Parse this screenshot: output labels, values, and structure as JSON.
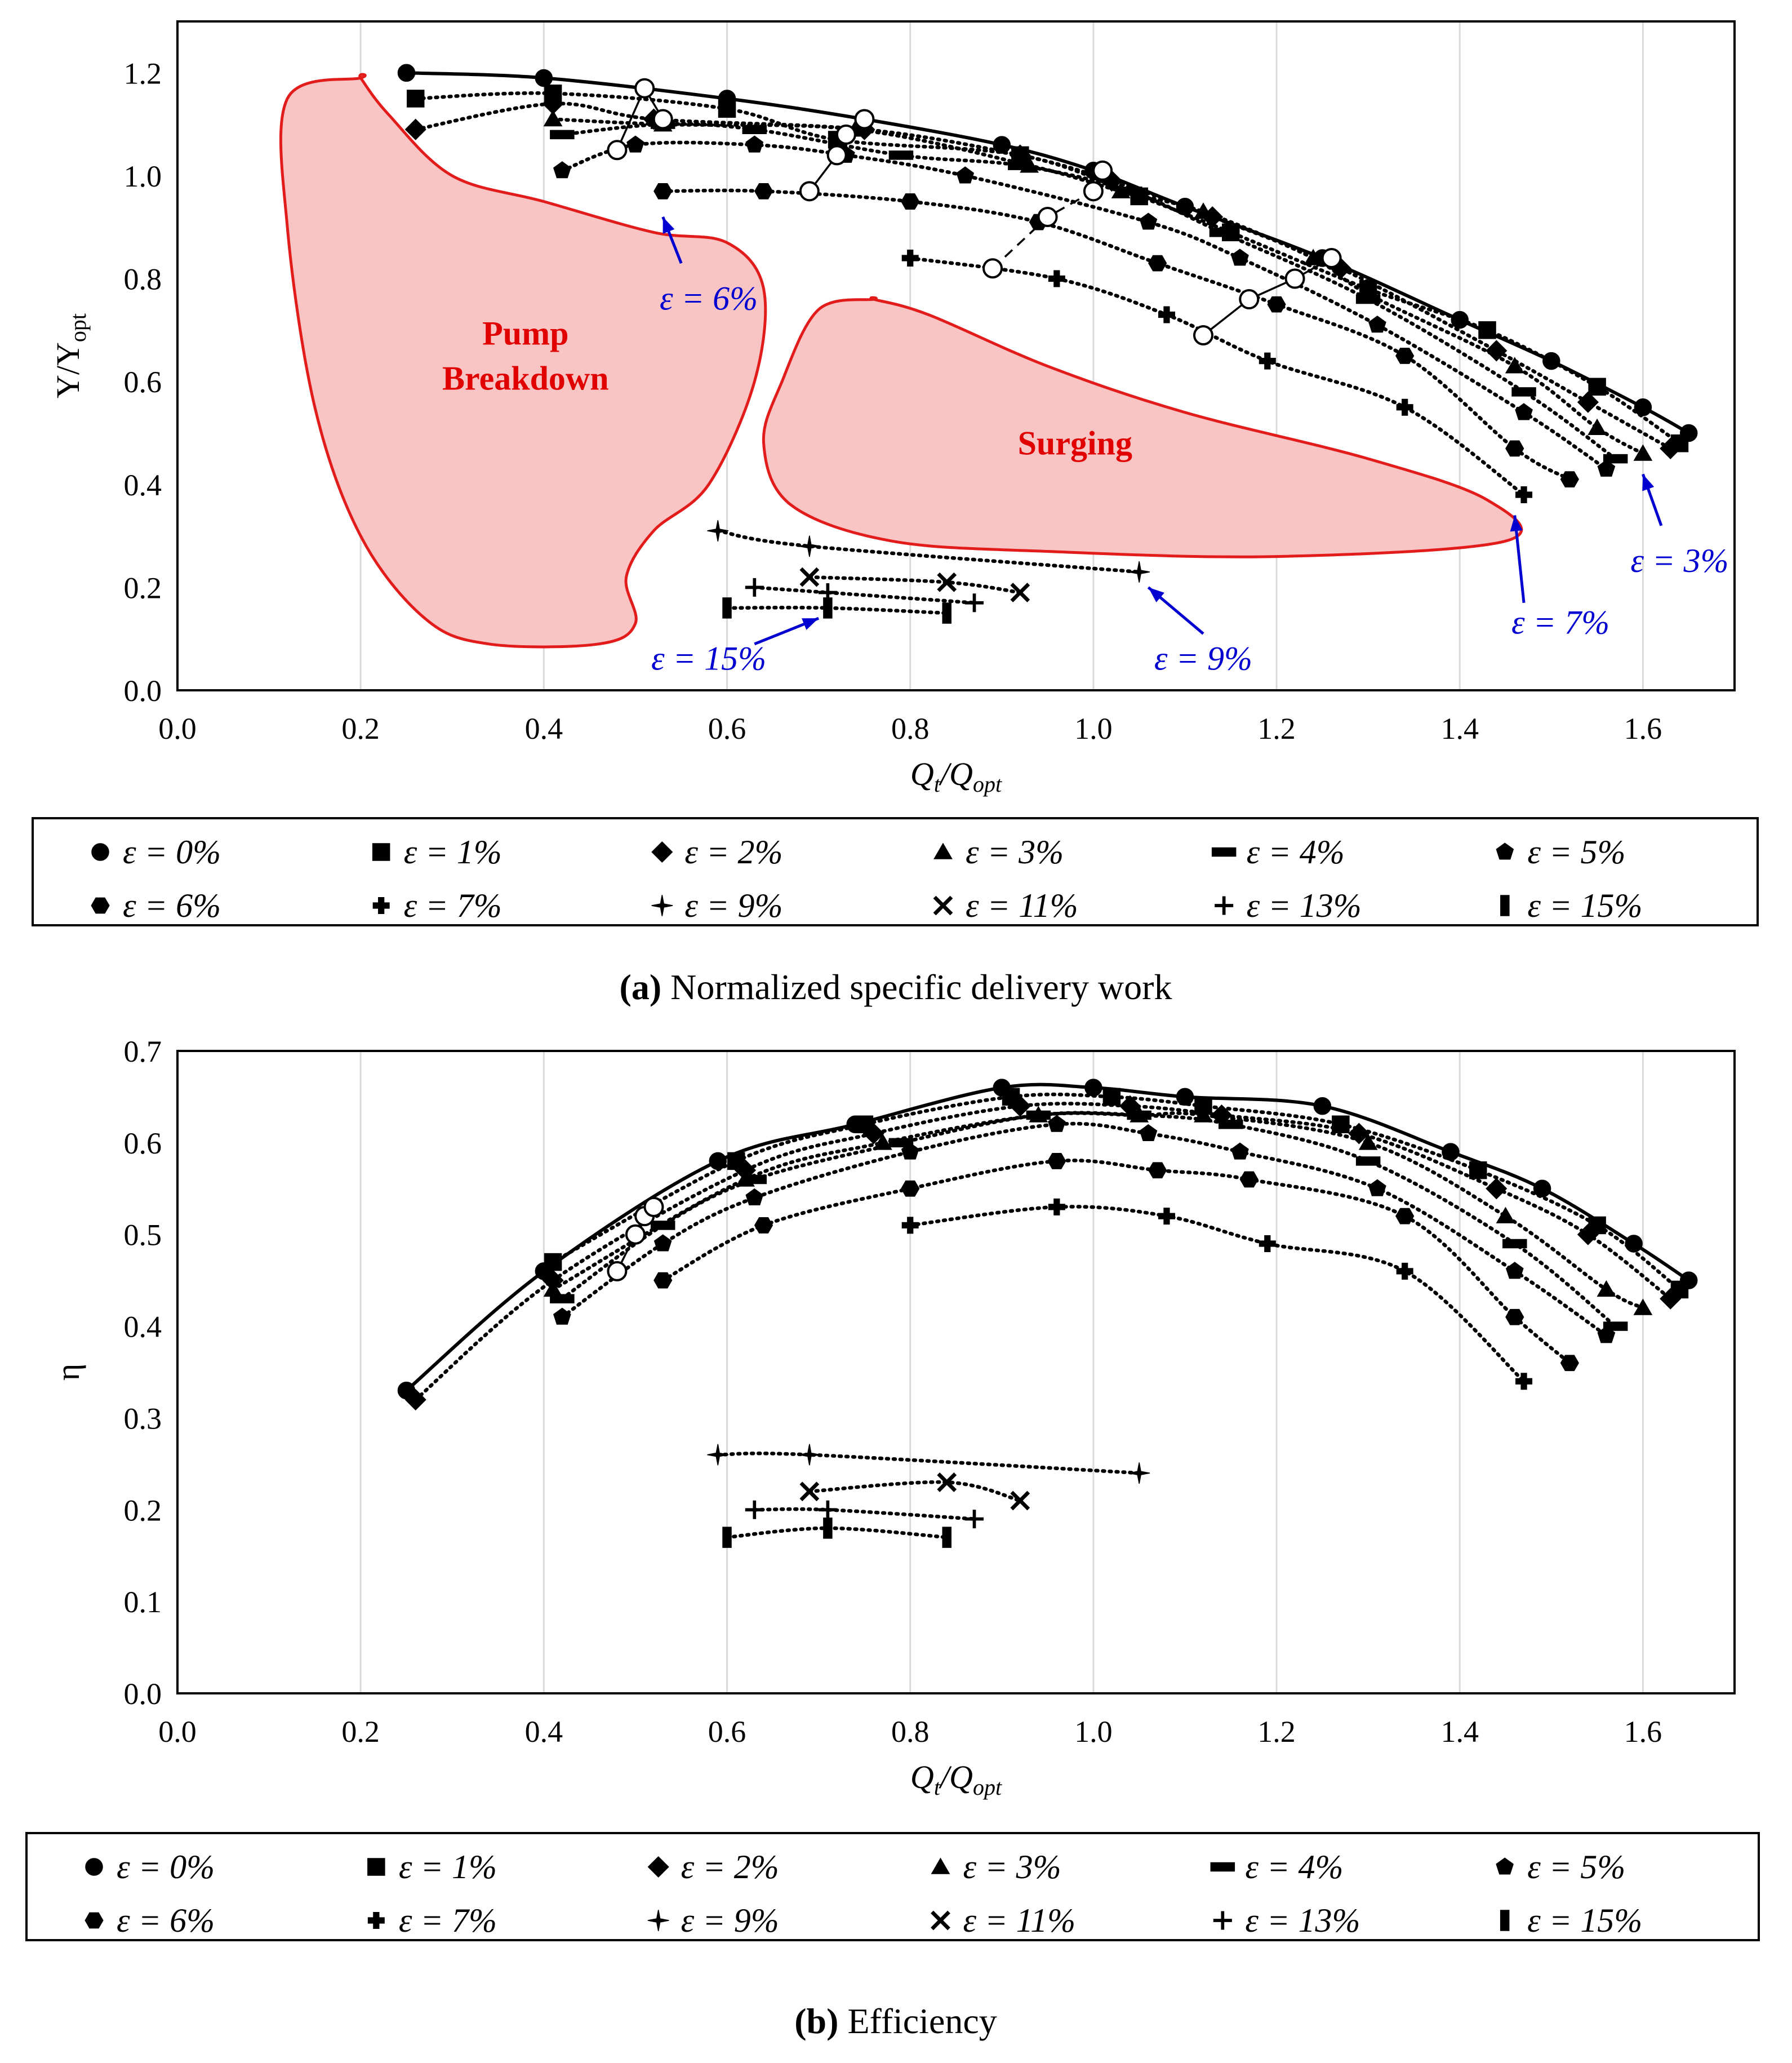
{
  "colors": {
    "region_fill": "#f9c4c4",
    "region_stroke": "#e21b1b",
    "annotation": "#0000d0",
    "grid": "#d9d9d9"
  },
  "chart_data": [
    {
      "id": "a",
      "type": "scatter",
      "caption_label": "(a)",
      "caption_text": " Normalized specific delivery work",
      "xlabel": "Q_t/Q_opt",
      "ylabel": "Υ/Υ_opt",
      "xlim": [
        0.0,
        1.7
      ],
      "ylim": [
        0.0,
        1.3
      ],
      "x_ticks": [
        "0.0",
        "0.2",
        "0.4",
        "0.6",
        "0.8",
        "1.0",
        "1.2",
        "1.4",
        "1.6"
      ],
      "y_ticks": [
        "0.0",
        "0.2",
        "0.4",
        "0.6",
        "0.8",
        "1.0",
        "1.2"
      ],
      "grid": "vertical",
      "regions": [
        {
          "label_lines": [
            "Pump",
            "Breakdown"
          ],
          "label_anchor": [
            0.38,
            0.65
          ],
          "outline": [
            [
              0.2,
              1.19
            ],
            [
              0.12,
              1.15
            ],
            [
              0.12,
              0.9
            ],
            [
              0.15,
              0.55
            ],
            [
              0.2,
              0.3
            ],
            [
              0.27,
              0.14
            ],
            [
              0.34,
              0.09
            ],
            [
              0.46,
              0.09
            ],
            [
              0.5,
              0.13
            ],
            [
              0.49,
              0.22
            ],
            [
              0.52,
              0.31
            ],
            [
              0.58,
              0.4
            ],
            [
              0.63,
              0.6
            ],
            [
              0.64,
              0.78
            ],
            [
              0.6,
              0.87
            ],
            [
              0.52,
              0.89
            ],
            [
              0.4,
              0.95
            ],
            [
              0.3,
              1.0
            ],
            [
              0.23,
              1.12
            ],
            [
              0.2,
              1.19
            ]
          ]
        },
        {
          "label_lines": [
            "Surging"
          ],
          "label_anchor": [
            0.98,
            0.48
          ],
          "outline": [
            [
              0.76,
              0.76
            ],
            [
              0.7,
              0.74
            ],
            [
              0.66,
              0.6
            ],
            [
              0.64,
              0.48
            ],
            [
              0.67,
              0.36
            ],
            [
              0.78,
              0.29
            ],
            [
              0.95,
              0.27
            ],
            [
              1.2,
              0.26
            ],
            [
              1.45,
              0.29
            ],
            [
              1.43,
              0.37
            ],
            [
              1.3,
              0.45
            ],
            [
              1.1,
              0.54
            ],
            [
              0.95,
              0.63
            ],
            [
              0.82,
              0.73
            ],
            [
              0.76,
              0.76
            ]
          ]
        }
      ],
      "annotations": [
        {
          "text": "ε = 6%",
          "text_anchor": [
            0.58,
            0.74
          ],
          "arrow_from": [
            0.55,
            0.83
          ],
          "arrow_to": [
            0.53,
            0.92
          ]
        },
        {
          "text": "ε = 15%",
          "text_anchor": [
            0.58,
            0.04
          ],
          "arrow_from": [
            0.63,
            0.09
          ],
          "arrow_to": [
            0.7,
            0.14
          ]
        },
        {
          "text": "ε = 9%",
          "text_anchor": [
            1.12,
            0.04
          ],
          "arrow_from": [
            1.12,
            0.11
          ],
          "arrow_to": [
            1.06,
            0.2
          ]
        },
        {
          "text": "ε = 7%",
          "text_anchor": [
            1.51,
            0.11
          ],
          "arrow_from": [
            1.47,
            0.17
          ],
          "arrow_to": [
            1.46,
            0.34
          ]
        },
        {
          "text": "ε = 3%",
          "text_anchor": [
            1.64,
            0.23
          ],
          "arrow_from": [
            1.62,
            0.32
          ],
          "arrow_to": [
            1.6,
            0.42
          ]
        }
      ],
      "series": [
        {
          "name": "ε = 0%",
          "marker": "circle",
          "solid": true,
          "x": [
            0.25,
            0.4,
            0.6,
            0.75,
            0.9,
            1.0,
            1.1,
            1.25,
            1.4,
            1.5,
            1.6,
            1.65
          ],
          "y": [
            1.2,
            1.19,
            1.15,
            1.11,
            1.06,
            1.01,
            0.94,
            0.84,
            0.72,
            0.64,
            0.55,
            0.5
          ]
        },
        {
          "name": "ε = 1%",
          "marker": "square",
          "x": [
            0.26,
            0.41,
            0.6,
            0.72,
            0.92,
            1.05,
            1.15,
            1.3,
            1.43,
            1.55,
            1.64
          ],
          "y": [
            1.15,
            1.16,
            1.13,
            1.07,
            1.04,
            0.96,
            0.89,
            0.78,
            0.7,
            0.59,
            0.48
          ]
        },
        {
          "name": "ε = 2%",
          "marker": "diamond",
          "x": [
            0.26,
            0.41,
            0.52,
            0.75,
            0.92,
            1.02,
            1.13,
            1.27,
            1.44,
            1.54,
            1.63
          ],
          "y": [
            1.09,
            1.14,
            1.11,
            1.09,
            1.04,
            0.99,
            0.92,
            0.82,
            0.66,
            0.56,
            0.47
          ]
        },
        {
          "name": "ε = 3%",
          "marker": "triangle",
          "x": [
            0.41,
            0.53,
            0.74,
            0.93,
            1.03,
            1.12,
            1.24,
            1.3,
            1.46,
            1.55,
            1.6
          ],
          "y": [
            1.11,
            1.1,
            1.09,
            1.02,
            0.97,
            0.93,
            0.84,
            0.77,
            0.63,
            0.51,
            0.46
          ]
        },
        {
          "name": "ε = 4%",
          "marker": "dash",
          "x": [
            0.42,
            0.53,
            0.63,
            0.79,
            0.92,
            1.04,
            1.14,
            1.3,
            1.47,
            1.57
          ],
          "y": [
            1.08,
            1.1,
            1.09,
            1.04,
            1.02,
            0.97,
            0.89,
            0.76,
            0.58,
            0.45
          ]
        },
        {
          "name": "ε = 5%",
          "marker": "pentagon",
          "x": [
            0.42,
            0.5,
            0.63,
            0.73,
            0.86,
            1.06,
            1.16,
            1.31,
            1.47,
            1.56
          ],
          "y": [
            1.01,
            1.06,
            1.06,
            1.04,
            1.0,
            0.91,
            0.84,
            0.71,
            0.54,
            0.43
          ]
        },
        {
          "name": "ε = 6%",
          "marker": "hexagon",
          "x": [
            0.53,
            0.64,
            0.8,
            0.94,
            1.07,
            1.2,
            1.34,
            1.46,
            1.52
          ],
          "y": [
            0.97,
            0.97,
            0.95,
            0.91,
            0.83,
            0.75,
            0.65,
            0.47,
            0.41
          ]
        },
        {
          "name": "ε = 7%",
          "marker": "thickplus",
          "x": [
            0.8,
            0.96,
            1.08,
            1.19,
            1.34,
            1.47
          ],
          "y": [
            0.84,
            0.8,
            0.73,
            0.64,
            0.55,
            0.38
          ]
        },
        {
          "name": "ε = 9%",
          "marker": "star4",
          "x": [
            0.59,
            0.69,
            1.05
          ],
          "y": [
            0.31,
            0.28,
            0.23
          ]
        },
        {
          "name": "ε = 11%",
          "marker": "cross",
          "x": [
            0.69,
            0.84,
            0.92
          ],
          "y": [
            0.22,
            0.21,
            0.19
          ]
        },
        {
          "name": "ε = 13%",
          "marker": "plus",
          "x": [
            0.63,
            0.71,
            0.87
          ],
          "y": [
            0.2,
            0.19,
            0.17
          ]
        },
        {
          "name": "ε = 15%",
          "marker": "vbar",
          "x": [
            0.6,
            0.71,
            0.84
          ],
          "y": [
            0.16,
            0.16,
            0.15
          ]
        }
      ],
      "operating_lines": [
        {
          "style": "solid",
          "x": [
            0.48,
            0.51,
            0.53
          ],
          "y": [
            1.05,
            1.17,
            1.11
          ]
        },
        {
          "style": "solid",
          "x": [
            0.69,
            0.72,
            0.73,
            0.75
          ],
          "y": [
            0.97,
            1.04,
            1.08,
            1.11
          ]
        },
        {
          "style": "dashed",
          "x": [
            0.89,
            0.95,
            1.0,
            1.01
          ],
          "y": [
            0.82,
            0.92,
            0.97,
            1.01
          ]
        },
        {
          "style": "solid",
          "x": [
            1.12,
            1.17,
            1.22,
            1.26
          ],
          "y": [
            0.69,
            0.76,
            0.8,
            0.84
          ]
        }
      ],
      "operating_points": {
        "x": [
          0.48,
          0.51,
          0.53,
          0.69,
          0.72,
          0.73,
          0.75,
          0.89,
          0.95,
          1.0,
          1.01,
          1.12,
          1.17,
          1.22,
          1.26
        ],
        "y": [
          1.05,
          1.17,
          1.11,
          0.97,
          1.04,
          1.08,
          1.11,
          0.82,
          0.92,
          0.97,
          1.01,
          0.69,
          0.76,
          0.8,
          0.84
        ]
      }
    },
    {
      "id": "b",
      "type": "scatter",
      "caption_label": "(b)",
      "caption_text": " Efficiency",
      "xlabel": "Q_t/Q_opt",
      "ylabel": "η",
      "xlim": [
        0.0,
        1.7
      ],
      "ylim": [
        0.0,
        0.7
      ],
      "x_ticks": [
        "0.0",
        "0.2",
        "0.4",
        "0.6",
        "0.8",
        "1.0",
        "1.2",
        "1.4",
        "1.6"
      ],
      "y_ticks": [
        "0.0",
        "0.1",
        "0.2",
        "0.3",
        "0.4",
        "0.5",
        "0.6",
        "0.7"
      ],
      "grid": "vertical",
      "series": [
        {
          "name": "ε = 0%",
          "marker": "circle",
          "solid": true,
          "x": [
            0.25,
            0.4,
            0.59,
            0.74,
            0.9,
            1.0,
            1.1,
            1.25,
            1.39,
            1.49,
            1.59,
            1.65
          ],
          "y": [
            0.33,
            0.46,
            0.58,
            0.62,
            0.66,
            0.66,
            0.65,
            0.64,
            0.59,
            0.55,
            0.49,
            0.45
          ]
        },
        {
          "name": "ε = 1%",
          "marker": "square",
          "x": [
            0.41,
            0.61,
            0.75,
            0.91,
            1.02,
            1.12,
            1.27,
            1.42,
            1.55,
            1.64
          ],
          "y": [
            0.47,
            0.58,
            0.62,
            0.65,
            0.65,
            0.64,
            0.62,
            0.57,
            0.51,
            0.44
          ]
        },
        {
          "name": "ε = 2%",
          "marker": "diamond",
          "x": [
            0.26,
            0.41,
            0.62,
            0.76,
            0.92,
            1.04,
            1.14,
            1.29,
            1.44,
            1.54,
            1.63
          ],
          "y": [
            0.32,
            0.45,
            0.57,
            0.61,
            0.64,
            0.64,
            0.63,
            0.61,
            0.55,
            0.5,
            0.43
          ]
        },
        {
          "name": "ε = 3%",
          "marker": "triangle",
          "x": [
            0.41,
            0.62,
            0.77,
            0.94,
            1.05,
            1.12,
            1.3,
            1.45,
            1.56,
            1.6
          ],
          "y": [
            0.44,
            0.56,
            0.6,
            0.63,
            0.63,
            0.63,
            0.6,
            0.52,
            0.44,
            0.42
          ]
        },
        {
          "name": "ε = 4%",
          "marker": "dash",
          "x": [
            0.42,
            0.53,
            0.63,
            0.79,
            0.94,
            1.05,
            1.15,
            1.3,
            1.46,
            1.57
          ],
          "y": [
            0.43,
            0.51,
            0.56,
            0.6,
            0.63,
            0.63,
            0.62,
            0.58,
            0.49,
            0.4
          ]
        },
        {
          "name": "ε = 5%",
          "marker": "pentagon",
          "x": [
            0.42,
            0.53,
            0.63,
            0.8,
            0.96,
            1.06,
            1.16,
            1.31,
            1.46,
            1.56
          ],
          "y": [
            0.41,
            0.49,
            0.54,
            0.59,
            0.62,
            0.61,
            0.59,
            0.55,
            0.46,
            0.39
          ]
        },
        {
          "name": "ε = 6%",
          "marker": "hexagon",
          "x": [
            0.53,
            0.64,
            0.8,
            0.96,
            1.07,
            1.17,
            1.34,
            1.46,
            1.52
          ],
          "y": [
            0.45,
            0.51,
            0.55,
            0.58,
            0.57,
            0.56,
            0.52,
            0.41,
            0.36
          ]
        },
        {
          "name": "ε = 7%",
          "marker": "thickplus",
          "x": [
            0.8,
            0.96,
            1.08,
            1.19,
            1.34,
            1.47
          ],
          "y": [
            0.51,
            0.53,
            0.52,
            0.49,
            0.46,
            0.34
          ]
        },
        {
          "name": "ε = 9%",
          "marker": "star4",
          "x": [
            0.59,
            0.69,
            1.05
          ],
          "y": [
            0.26,
            0.26,
            0.24
          ]
        },
        {
          "name": "ε = 11%",
          "marker": "cross",
          "x": [
            0.69,
            0.84,
            0.92
          ],
          "y": [
            0.22,
            0.23,
            0.21
          ]
        },
        {
          "name": "ε = 13%",
          "marker": "plus",
          "x": [
            0.63,
            0.71,
            0.87
          ],
          "y": [
            0.2,
            0.2,
            0.19
          ]
        },
        {
          "name": "ε = 15%",
          "marker": "vbar",
          "x": [
            0.6,
            0.71,
            0.84
          ],
          "y": [
            0.17,
            0.18,
            0.17
          ]
        }
      ],
      "operating_lines": [
        {
          "style": "solid",
          "x": [
            0.48,
            0.5,
            0.51,
            0.52
          ],
          "y": [
            0.46,
            0.5,
            0.52,
            0.53
          ]
        }
      ],
      "operating_points": {
        "x": [
          0.48,
          0.5,
          0.51,
          0.52
        ],
        "y": [
          0.46,
          0.5,
          0.52,
          0.53
        ]
      }
    }
  ]
}
